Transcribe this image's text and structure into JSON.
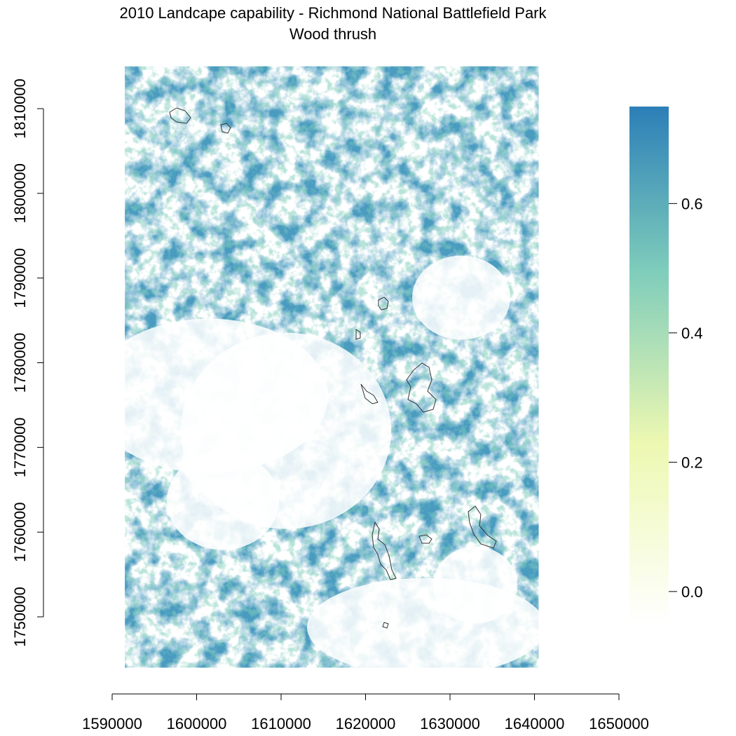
{
  "title": "2010 Landcape capability - Richmond National Battlefield Park",
  "subtitle": "Wood thrush",
  "x_axis": {
    "ticks": [
      "1590000",
      "1600000",
      "1610000",
      "1620000",
      "1630000",
      "1640000",
      "1650000"
    ],
    "range": [
      1590000,
      1650000
    ]
  },
  "y_axis": {
    "ticks": [
      "1750000",
      "1760000",
      "1770000",
      "1780000",
      "1790000",
      "1800000",
      "1810000"
    ],
    "range": [
      1750000,
      1810000
    ]
  },
  "legend": {
    "placement": "right",
    "ticks": [
      "0.0",
      "0.2",
      "0.4",
      "0.6"
    ],
    "range": [
      -0.05,
      0.75
    ],
    "colors": [
      "#ffffff",
      "#edf8b1",
      "#7fcdbb",
      "#2c7fb8"
    ]
  },
  "raster": {
    "extent_x": [
      1591500,
      1640500
    ],
    "extent_y": [
      1744000,
      1815000
    ],
    "fill_color": "#4a9bc0"
  },
  "park_outline_color": "#333333"
}
